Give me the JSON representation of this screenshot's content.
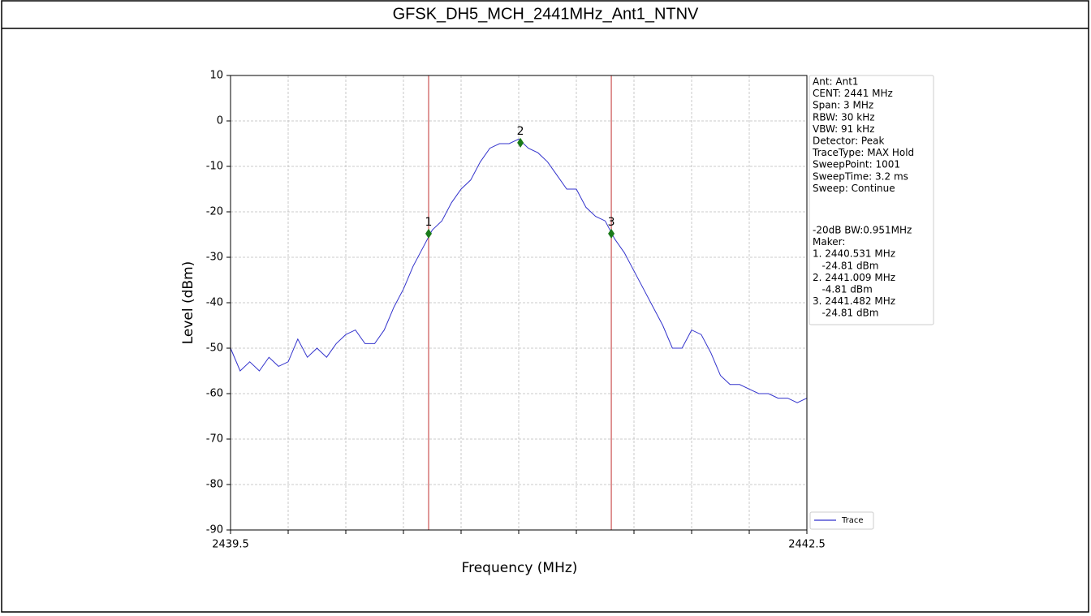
{
  "chart_data": {
    "type": "line",
    "title": "GFSK_DH5_MCH_2441MHz_Ant1_NTNV",
    "x_label": "Frequency (MHz)",
    "y_label": "Level (dBm)",
    "xlim": [
      2439.5,
      2442.5
    ],
    "ylim": [
      -90,
      10
    ],
    "xticks": [
      2439.5,
      2442.5
    ],
    "xminorticks": [
      2439.8,
      2440.1,
      2440.4,
      2440.7,
      2441.0,
      2441.3,
      2441.6,
      2441.9,
      2442.2
    ],
    "yticks": [
      10,
      0,
      -10,
      -20,
      -30,
      -40,
      -50,
      -60,
      -70,
      -80,
      -90
    ],
    "grid": true,
    "legend": "lower right",
    "x": [
      2439.5,
      2439.55,
      2439.6,
      2439.65,
      2439.7,
      2439.75,
      2439.8,
      2439.85,
      2439.9,
      2439.95,
      2440.0,
      2440.05,
      2440.1,
      2440.15,
      2440.2,
      2440.25,
      2440.3,
      2440.35,
      2440.4,
      2440.45,
      2440.5,
      2440.55,
      2440.6,
      2440.65,
      2440.7,
      2440.75,
      2440.8,
      2440.85,
      2440.9,
      2440.95,
      2441.0,
      2441.05,
      2441.1,
      2441.15,
      2441.2,
      2441.25,
      2441.3,
      2441.35,
      2441.4,
      2441.45,
      2441.5,
      2441.55,
      2441.6,
      2441.65,
      2441.7,
      2441.75,
      2441.8,
      2441.85,
      2441.9,
      2441.95,
      2442.0,
      2442.05,
      2442.1,
      2442.15,
      2442.2,
      2442.25,
      2442.3,
      2442.35,
      2442.4,
      2442.45,
      2442.5
    ],
    "series": [
      {
        "name": "Trace",
        "color": "#3333cc",
        "values": [
          -50,
          -55,
          -53,
          -55,
          -52,
          -54,
          -53,
          -48,
          -52,
          -50,
          -52,
          -49,
          -47,
          -46,
          -49,
          -49,
          -46,
          -41,
          -37,
          -32,
          -28,
          -24,
          -22,
          -18,
          -15,
          -13,
          -9,
          -6,
          -5,
          -5,
          -4,
          -6,
          -7,
          -9,
          -12,
          -15,
          -15,
          -19,
          -21,
          -22,
          -26,
          -29,
          -33,
          -37,
          -41,
          -45,
          -50,
          -50,
          -46,
          -47,
          -51,
          -56,
          -58,
          -58,
          -59,
          -60,
          -60,
          -61,
          -61,
          -62,
          -61
        ]
      }
    ],
    "markers": [
      {
        "label": "1",
        "x": 2440.531,
        "y": -24.81
      },
      {
        "label": "2",
        "x": 2441.009,
        "y": -4.81
      },
      {
        "label": "3",
        "x": 2441.482,
        "y": -24.81
      }
    ],
    "marker_color": "#1a7a1a",
    "vline_color": "#d06060",
    "settings": [
      "Ant: Ant1",
      "CENT: 2441 MHz",
      "Span: 3 MHz",
      "RBW: 30 kHz",
      "VBW: 91 kHz",
      "Detector: Peak",
      "TraceType: MAX Hold",
      "SweepPoint: 1001",
      "SweepTime: 3.2 ms",
      "Sweep: Continue"
    ],
    "results": [
      "-20dB BW:0.951MHz",
      "Maker:",
      "1. 2440.531 MHz",
      "   -24.81 dBm",
      "2. 2441.009 MHz",
      "   -4.81 dBm",
      "3. 2441.482 MHz",
      "   -24.81 dBm"
    ]
  }
}
